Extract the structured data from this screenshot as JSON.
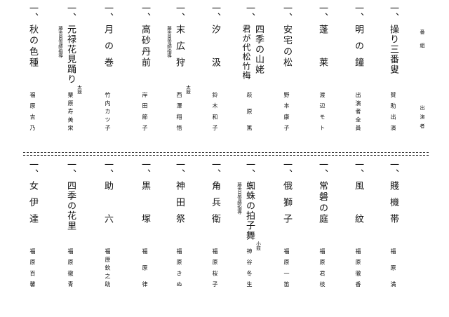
{
  "header": {
    "program_label": "番組",
    "performer_label": "出演者"
  },
  "dash": "一、",
  "top_row": [
    {
      "title": "操り三番叟",
      "performer": "賛助出演"
    },
    {
      "title": "明の鐘",
      "performer": "出演者全員"
    },
    {
      "title": "蓬莱",
      "performer": "渡辺モト"
    },
    {
      "title": "安宅の松",
      "performer": "野本康子"
    },
    {
      "title": "四季の山姥",
      "subtitle": "君が代松竹梅",
      "performer": "萩原篤"
    },
    {
      "title": "汐汲",
      "performer": "鈴木和子"
    },
    {
      "title": "末広狩",
      "note": "藤舎呂雪師指導",
      "performer_note": "太鼓",
      "performer": "西澤翔悟"
    },
    {
      "title": "高砂丹前",
      "performer": "岸田節子"
    },
    {
      "title": "月の巻",
      "performer": "竹内カツ子"
    },
    {
      "title": "元禄花見踊り",
      "note": "藤舎呂雪師指導",
      "performer_note": "太鼓",
      "performer": "粟原寿美栄"
    },
    {
      "title": "秋の色種",
      "performer": "福原吉乃"
    }
  ],
  "bottom_row": [
    {
      "title": "賤機帯",
      "performer": "福原満"
    },
    {
      "title": "風紋",
      "performer": "福原徹香"
    },
    {
      "title": "常磐の庭",
      "performer": "福原君枝"
    },
    {
      "title": "俄獅子",
      "performer": "福原一笛"
    },
    {
      "title": "蜘蛛の拍子舞",
      "note": "藤舎呂雪師指導",
      "performer_note": "小鼓",
      "performer": "神谷冬生"
    },
    {
      "title": "角兵衛",
      "performer": "福原桜子"
    },
    {
      "title": "神田祭",
      "performer": "福原きぬ"
    },
    {
      "title": "黒塚",
      "performer": "福原律"
    },
    {
      "title": "助六",
      "performer": "福原欽之助"
    },
    {
      "title": "四季の花里",
      "performer": "福原徹青"
    },
    {
      "title": "女伊達",
      "performer": "福原百馨"
    }
  ]
}
